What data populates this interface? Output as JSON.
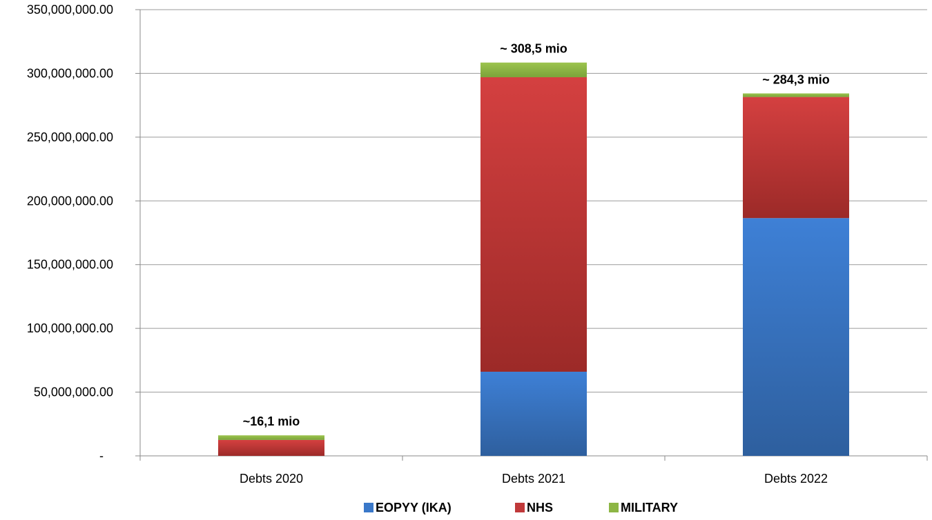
{
  "chart_data": {
    "type": "bar",
    "stacked": true,
    "title": "",
    "xlabel": "",
    "ylabel": "",
    "ylim": [
      0,
      350000000
    ],
    "y_ticks": [
      0,
      50000000,
      100000000,
      150000000,
      200000000,
      250000000,
      300000000,
      350000000
    ],
    "y_tick_labels": [
      "-",
      "50,000,000.00",
      "100,000,000.00",
      "150,000,000.00",
      "200,000,000.00",
      "250,000,000.00",
      "300,000,000.00",
      "350,000,000.00"
    ],
    "grid": true,
    "legend_position": "bottom",
    "categories": [
      "Debts 2020",
      "Debts 2021",
      "Debts 2022"
    ],
    "series": [
      {
        "name": "EOPYY (IKA)",
        "color": "#3A78C9",
        "values": [
          0,
          66000000,
          186500000
        ]
      },
      {
        "name": "NHS",
        "color": "#C0393A",
        "values": [
          12500000,
          231000000,
          95000000
        ]
      },
      {
        "name": "MILITARY",
        "color": "#8DB645",
        "values": [
          3600000,
          11500000,
          2800000
        ]
      }
    ],
    "totals_labels": [
      "~16,1 mio",
      "~ 308,5 mio",
      "~ 284,3 mio"
    ],
    "totals_values": [
      16100000,
      308500000,
      284300000
    ]
  }
}
